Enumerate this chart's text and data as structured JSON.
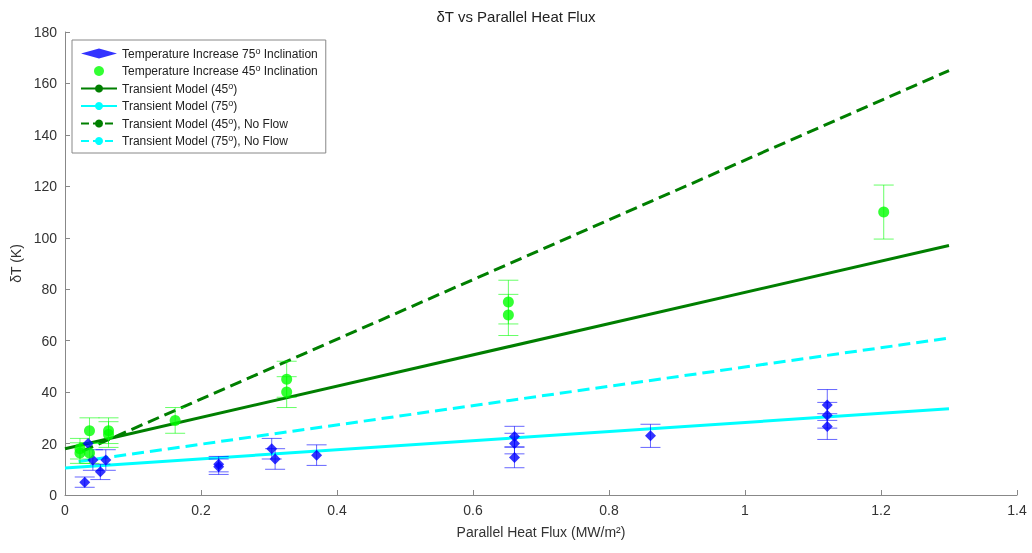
{
  "chart_data": {
    "type": "scatter",
    "title": "δT vs Parallel Heat Flux",
    "xlabel": "Parallel Heat Flux (MW/m²)",
    "ylabel": "δT (K)",
    "xlim": [
      0,
      1.4
    ],
    "xticks": [
      0,
      0.2,
      0.4,
      0.6,
      0.8,
      1,
      1.2,
      1.4
    ],
    "ylim": [
      0,
      180
    ],
    "yticks": [
      0,
      20,
      40,
      60,
      80,
      100,
      120,
      140,
      160,
      180
    ],
    "grid": false,
    "legend": "top left",
    "series": [
      {
        "name": "Temperature Increase 75$^{o}$ Inclination",
        "marker": "diamond",
        "color": "#0000ff",
        "x": [
          0.029,
          0.034,
          0.041,
          0.052,
          0.06,
          0.226,
          0.226,
          0.304,
          0.309,
          0.37,
          0.661,
          0.661,
          0.661,
          0.861,
          1.121,
          1.121,
          1.121
        ],
        "values": [
          5,
          20,
          13.6,
          9,
          13.6,
          11,
          12,
          18,
          14,
          15.5,
          22.7,
          20,
          14.6,
          23,
          35,
          31,
          26.6
        ],
        "errors": [
          2,
          null,
          4,
          3,
          4,
          3,
          3,
          4,
          4,
          4,
          4,
          4,
          4,
          4.5,
          6,
          5,
          5
        ]
      },
      {
        "name": "Temperature Increase 45$^{o}$ Inclination",
        "marker": "circle",
        "color": "#00ff00",
        "x": [
          0.022,
          0.022,
          0.036,
          0.036,
          0.064,
          0.064,
          0.162,
          0.326,
          0.326,
          0.652,
          0.652,
          1.204
        ],
        "values": [
          16.3,
          18,
          25,
          16.3,
          25,
          23.5,
          29,
          45,
          40,
          75,
          70,
          110
        ],
        "errors": [
          4,
          4,
          5,
          4,
          5,
          5,
          5,
          7,
          6,
          8.5,
          8,
          10.5
        ]
      },
      {
        "name": "Transient Model (45$^{o}$)",
        "type": "line",
        "marker": "none",
        "line_style": "solid",
        "color": "#007f00",
        "x": [
          0,
          1.3
        ],
        "values": [
          18,
          97
        ]
      },
      {
        "name": "Transient Model (75$^{o}$)",
        "type": "line",
        "marker": "none",
        "line_style": "solid",
        "color": "#00ffff",
        "x": [
          0,
          1.3
        ],
        "values": [
          10.5,
          33.5
        ]
      },
      {
        "name": "Transient Model (45$^{o}$), No Flow",
        "type": "line",
        "marker": "none",
        "line_style": "dashed",
        "color": "#007f00",
        "x": [
          0.025,
          1.3
        ],
        "values": [
          17,
          165
        ]
      },
      {
        "name": "Transient Model (75$^{o}$), No Flow",
        "type": "line",
        "marker": "none",
        "line_style": "dashed",
        "color": "#00ffff",
        "x": [
          0.02,
          1.3
        ],
        "values": [
          13,
          61
        ]
      }
    ]
  }
}
